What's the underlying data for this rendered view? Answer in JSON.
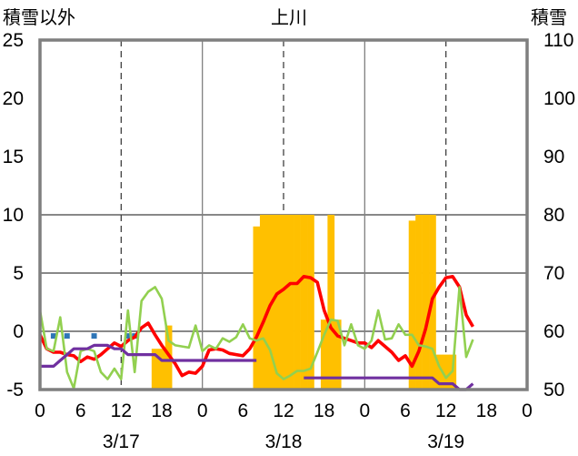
{
  "chart_data": {
    "type": "combo",
    "title": "上川",
    "left_axis_title": "積雪以外",
    "right_axis_title": "積雪",
    "left_ylim": [
      -5,
      25
    ],
    "right_ylim": [
      50,
      110
    ],
    "left_ticks": [
      "25",
      "20",
      "15",
      "10",
      "5",
      "0",
      "-5"
    ],
    "right_ticks": [
      "110",
      "100",
      "90",
      "80",
      "70",
      "60",
      "50"
    ],
    "x_hours": [
      0,
      6,
      12,
      18,
      24,
      30,
      36,
      42,
      48,
      54,
      60,
      66,
      72
    ],
    "x_tick_labels": [
      "0",
      "6",
      "12",
      "18",
      "0",
      "6",
      "12",
      "18",
      "0",
      "6",
      "12",
      "18",
      "0"
    ],
    "date_labels": [
      {
        "hour": 12,
        "text": "3/17"
      },
      {
        "hour": 36,
        "text": "3/18"
      },
      {
        "hour": 60,
        "text": "3/19"
      }
    ],
    "grid": "dashed vertical lines at 12h, solid vertical separators at 24h and 48h, horizontal at left-axis 0/5/10",
    "snow_depth_bars": {
      "color": "#FFC000",
      "axis": "right",
      "points": [
        [
          17,
          57
        ],
        [
          18,
          57
        ],
        [
          19,
          61
        ],
        [
          32,
          78
        ],
        [
          33,
          80
        ],
        [
          34,
          80
        ],
        [
          35,
          80
        ],
        [
          36,
          80
        ],
        [
          37,
          80
        ],
        [
          38,
          80
        ],
        [
          39,
          80
        ],
        [
          40,
          80
        ],
        [
          42,
          62
        ],
        [
          43,
          80
        ],
        [
          44,
          62
        ],
        [
          55,
          79
        ],
        [
          56,
          80
        ],
        [
          57,
          80
        ],
        [
          58,
          80
        ],
        [
          59,
          56
        ],
        [
          60,
          56
        ],
        [
          61,
          56
        ]
      ]
    },
    "blue_squares": {
      "color": "#2E75B6",
      "axis": "left",
      "points": [
        [
          2,
          -0.4
        ],
        [
          4,
          -0.4
        ],
        [
          8,
          -0.4
        ],
        [
          13,
          -0.4
        ],
        [
          14,
          -0.4
        ]
      ]
    },
    "series": [
      {
        "color": "#FF0000",
        "axis": "left",
        "points": [
          [
            0,
            -0.3
          ],
          [
            1,
            -1.5
          ],
          [
            2,
            -1.8
          ],
          [
            3,
            -1.8
          ],
          [
            4,
            -2.0
          ],
          [
            5,
            -2.1
          ],
          [
            6,
            -2.6
          ],
          [
            7,
            -2.2
          ],
          [
            8,
            -2.4
          ],
          [
            9,
            -2.0
          ],
          [
            10,
            -1.5
          ],
          [
            11,
            -1.0
          ],
          [
            12,
            -1.3
          ],
          [
            13,
            -0.8
          ],
          [
            14,
            -0.5
          ],
          [
            15,
            0.3
          ],
          [
            16,
            0.7
          ],
          [
            17,
            -0.3
          ],
          [
            18,
            -1.2
          ],
          [
            19,
            -2.0
          ],
          [
            20,
            -2.8
          ],
          [
            21,
            -3.8
          ],
          [
            22,
            -3.5
          ],
          [
            23,
            -3.6
          ],
          [
            24,
            -3.0
          ],
          [
            25,
            -1.6
          ],
          [
            26,
            -1.5
          ],
          [
            27,
            -1.6
          ],
          [
            28,
            -1.9
          ],
          [
            29,
            -2.0
          ],
          [
            30,
            -2.1
          ],
          [
            31,
            -1.5
          ],
          [
            32,
            -0.5
          ],
          [
            33,
            0.8
          ],
          [
            34,
            2.2
          ],
          [
            35,
            3.2
          ],
          [
            36,
            3.6
          ],
          [
            37,
            4.1
          ],
          [
            38,
            4.1
          ],
          [
            39,
            4.7
          ],
          [
            40,
            4.6
          ],
          [
            41,
            4.2
          ],
          [
            42,
            1.8
          ],
          [
            43,
            0.3
          ],
          [
            44,
            -0.4
          ],
          [
            45,
            -0.6
          ],
          [
            46,
            -0.8
          ],
          [
            47,
            -1.0
          ],
          [
            48,
            -1.0
          ],
          [
            49,
            -1.4
          ],
          [
            50,
            -0.8
          ],
          [
            51,
            -1.3
          ],
          [
            52,
            -1.8
          ],
          [
            53,
            -2.5
          ],
          [
            54,
            -2.1
          ],
          [
            55,
            -3.0
          ],
          [
            56,
            -1.7
          ],
          [
            57,
            0.2
          ],
          [
            58,
            2.8
          ],
          [
            59,
            3.8
          ],
          [
            60,
            4.6
          ],
          [
            61,
            4.7
          ],
          [
            62,
            3.8
          ],
          [
            63,
            1.4
          ],
          [
            64,
            0.4
          ]
        ]
      },
      {
        "color": "#92D050",
        "axis": "left",
        "points": [
          [
            0,
            1.8
          ],
          [
            1,
            -1.5
          ],
          [
            2,
            -1.7
          ],
          [
            3,
            1.2
          ],
          [
            4,
            -3.5
          ],
          [
            5,
            -4.9
          ],
          [
            6,
            -1.7
          ],
          [
            7,
            -1.5
          ],
          [
            8,
            -1.7
          ],
          [
            9,
            -3.5
          ],
          [
            10,
            -4.1
          ],
          [
            11,
            -3.2
          ],
          [
            12,
            -4.1
          ],
          [
            13,
            1.8
          ],
          [
            14,
            -3.5
          ],
          [
            15,
            2.6
          ],
          [
            16,
            3.4
          ],
          [
            17,
            3.8
          ],
          [
            18,
            2.8
          ],
          [
            19,
            -0.8
          ],
          [
            20,
            -1.2
          ],
          [
            21,
            -1.3
          ],
          [
            22,
            -1.4
          ],
          [
            23,
            0.5
          ],
          [
            24,
            -1.7
          ],
          [
            25,
            -1.2
          ],
          [
            26,
            -1.5
          ],
          [
            27,
            -0.6
          ],
          [
            28,
            -0.9
          ],
          [
            29,
            -0.5
          ],
          [
            30,
            0.6
          ],
          [
            31,
            -0.6
          ],
          [
            32,
            -0.8
          ],
          [
            33,
            -0.6
          ],
          [
            34,
            -1.6
          ],
          [
            35,
            -3.6
          ],
          [
            36,
            -4.1
          ],
          [
            37,
            -3.8
          ],
          [
            38,
            -3.4
          ],
          [
            39,
            -3.4
          ],
          [
            40,
            -3.2
          ],
          [
            41,
            -1.8
          ],
          [
            42,
            -0.3
          ],
          [
            43,
            1.0
          ],
          [
            44,
            0.9
          ],
          [
            45,
            -1.2
          ],
          [
            46,
            0.6
          ],
          [
            47,
            -1.2
          ],
          [
            48,
            -1.5
          ],
          [
            49,
            -0.8
          ],
          [
            50,
            1.8
          ],
          [
            51,
            -0.7
          ],
          [
            52,
            -0.6
          ],
          [
            53,
            0.6
          ],
          [
            54,
            -0.3
          ],
          [
            55,
            -0.3
          ],
          [
            56,
            -1.2
          ],
          [
            57,
            -1.3
          ],
          [
            58,
            -1.5
          ],
          [
            59,
            -3.0
          ],
          [
            60,
            -4.0
          ],
          [
            61,
            -3.4
          ],
          [
            62,
            3.8
          ],
          [
            63,
            -2.2
          ],
          [
            64,
            -0.7
          ]
        ]
      },
      {
        "color": "#7030A0",
        "axis": "left",
        "points": [
          [
            0,
            -3.0
          ],
          [
            1,
            -3.0
          ],
          [
            2,
            -3.0
          ],
          [
            3,
            -2.5
          ],
          [
            4,
            -2.0
          ],
          [
            5,
            -1.5
          ],
          [
            6,
            -1.5
          ],
          [
            7,
            -1.5
          ],
          [
            8,
            -1.2
          ],
          [
            9,
            -1.2
          ],
          [
            10,
            -1.2
          ],
          [
            11,
            -1.5
          ],
          [
            12,
            -1.5
          ],
          [
            13,
            -2.0
          ],
          [
            14,
            -2.0
          ],
          [
            15,
            -2.0
          ],
          [
            16,
            -2.0
          ],
          [
            17,
            -2.0
          ],
          [
            18,
            -2.5
          ],
          [
            19,
            -2.5
          ],
          [
            20,
            -2.5
          ],
          [
            21,
            -2.5
          ],
          [
            22,
            -2.5
          ],
          [
            23,
            -2.5
          ],
          [
            24,
            -2.5
          ],
          [
            25,
            -2.5
          ],
          [
            26,
            -2.5
          ],
          [
            27,
            -2.5
          ],
          [
            28,
            -2.5
          ],
          [
            29,
            -2.5
          ],
          [
            30,
            -2.5
          ],
          [
            31,
            -2.5
          ],
          [
            32,
            -2.5
          ],
          [
            33,
            null
          ],
          [
            39,
            -4.0
          ],
          [
            40,
            -4.0
          ],
          [
            41,
            -4.0
          ],
          [
            42,
            -4.0
          ],
          [
            43,
            -4.0
          ],
          [
            44,
            -4.0
          ],
          [
            45,
            -4.0
          ],
          [
            46,
            -4.0
          ],
          [
            47,
            -4.0
          ],
          [
            48,
            -4.0
          ],
          [
            49,
            -4.0
          ],
          [
            50,
            -4.0
          ],
          [
            51,
            -4.0
          ],
          [
            52,
            -4.0
          ],
          [
            53,
            -4.0
          ],
          [
            54,
            -4.0
          ],
          [
            55,
            -4.0
          ],
          [
            56,
            -4.0
          ],
          [
            57,
            -4.0
          ],
          [
            58,
            -4.0
          ],
          [
            59,
            -4.5
          ],
          [
            60,
            -4.5
          ],
          [
            61,
            -4.5
          ],
          [
            62,
            -5.0
          ],
          [
            63,
            -5.0
          ],
          [
            64,
            -4.5
          ]
        ]
      }
    ]
  }
}
